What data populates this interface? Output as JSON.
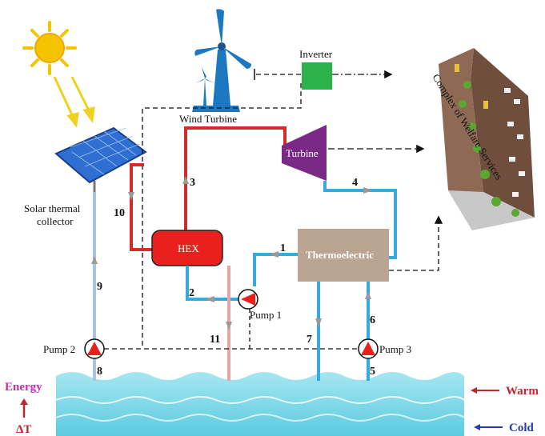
{
  "labels": {
    "inverter": "Inverter",
    "wind_turbine": "Wind Turbine",
    "turbine": "Turbine",
    "solar_line1": "Solar thermal",
    "solar_line2": "collector",
    "hex": "HEX",
    "thermoelectric": "Thermoelectric",
    "pump1": "Pump 1",
    "pump2": "Pump 2",
    "pump3": "Pump 3",
    "complex": "Complex of Welfare Services",
    "energy": "Energy",
    "delta_t": "ΔT",
    "warm": "Warm",
    "cold": "Cold"
  },
  "stream_numbers": [
    "1",
    "2",
    "3",
    "4",
    "5",
    "6",
    "7",
    "8",
    "9",
    "10",
    "11"
  ],
  "colors": {
    "hot_line": "#d42a2a",
    "cold_line": "#38a8e0",
    "pale_blue_line": "#a9c3e0",
    "pink_line": "#e8a5a5",
    "turbine": "#7a2a86",
    "inverter": "#2bb24a",
    "hex": "#e8211e",
    "thermoelectric": "#b9a591",
    "warm_text": "#c0262e",
    "cold_text": "#2a3aa8",
    "energy_text": "#c72bb8",
    "water": "#7fd8e8"
  }
}
